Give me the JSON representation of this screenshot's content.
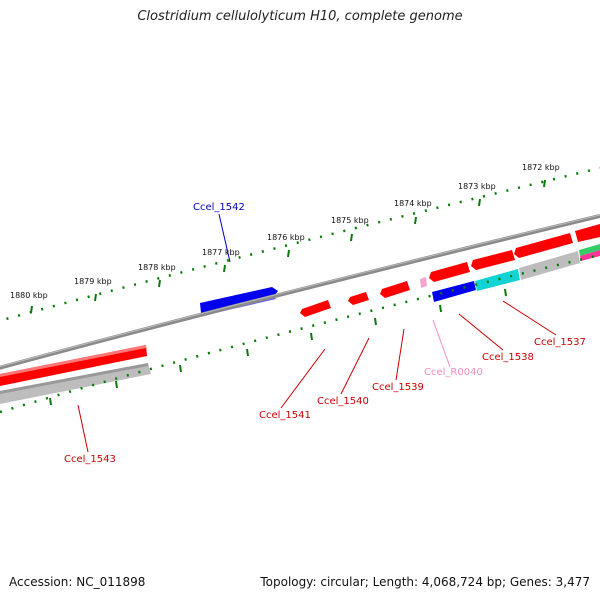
{
  "title": "Clostridium cellulolyticum H10, complete genome",
  "footer": {
    "accession": "Accession: NC_011898",
    "topology": "Topology: circular; Length: 4,068,724 bp; Genes: 3,477"
  },
  "colors": {
    "forward_gene": "#ff0000",
    "reverse_gene": "#bdbdbd",
    "highlight_blue": "#0000ee",
    "rna_pink": "#f4a6cf",
    "cyan_gene": "#11d3d3",
    "backbone": "#7a7a7a",
    "tick_green": "#0a7a0a"
  },
  "scale": {
    "labels": [
      "1880 kbp",
      "1879 kbp",
      "1878 kbp",
      "1877 kbp",
      "1876 kbp",
      "1875 kbp",
      "1874 kbp",
      "1873 kbp",
      "1872 kbp"
    ]
  },
  "gene_labels": [
    {
      "text": "Ccel_1542",
      "color": "#0000bb"
    },
    {
      "text": "Ccel_1543",
      "color": "#cc0000"
    },
    {
      "text": "Ccel_1541",
      "color": "#cc0000"
    },
    {
      "text": "Ccel_1540",
      "color": "#cc0000"
    },
    {
      "text": "Ccel_1539",
      "color": "#cc0000"
    },
    {
      "text": "Ccel_R0040",
      "color": "#f08cc0"
    },
    {
      "text": "Ccel_1538",
      "color": "#cc0000"
    },
    {
      "text": "Ccel_1537",
      "color": "#cc0000"
    }
  ]
}
